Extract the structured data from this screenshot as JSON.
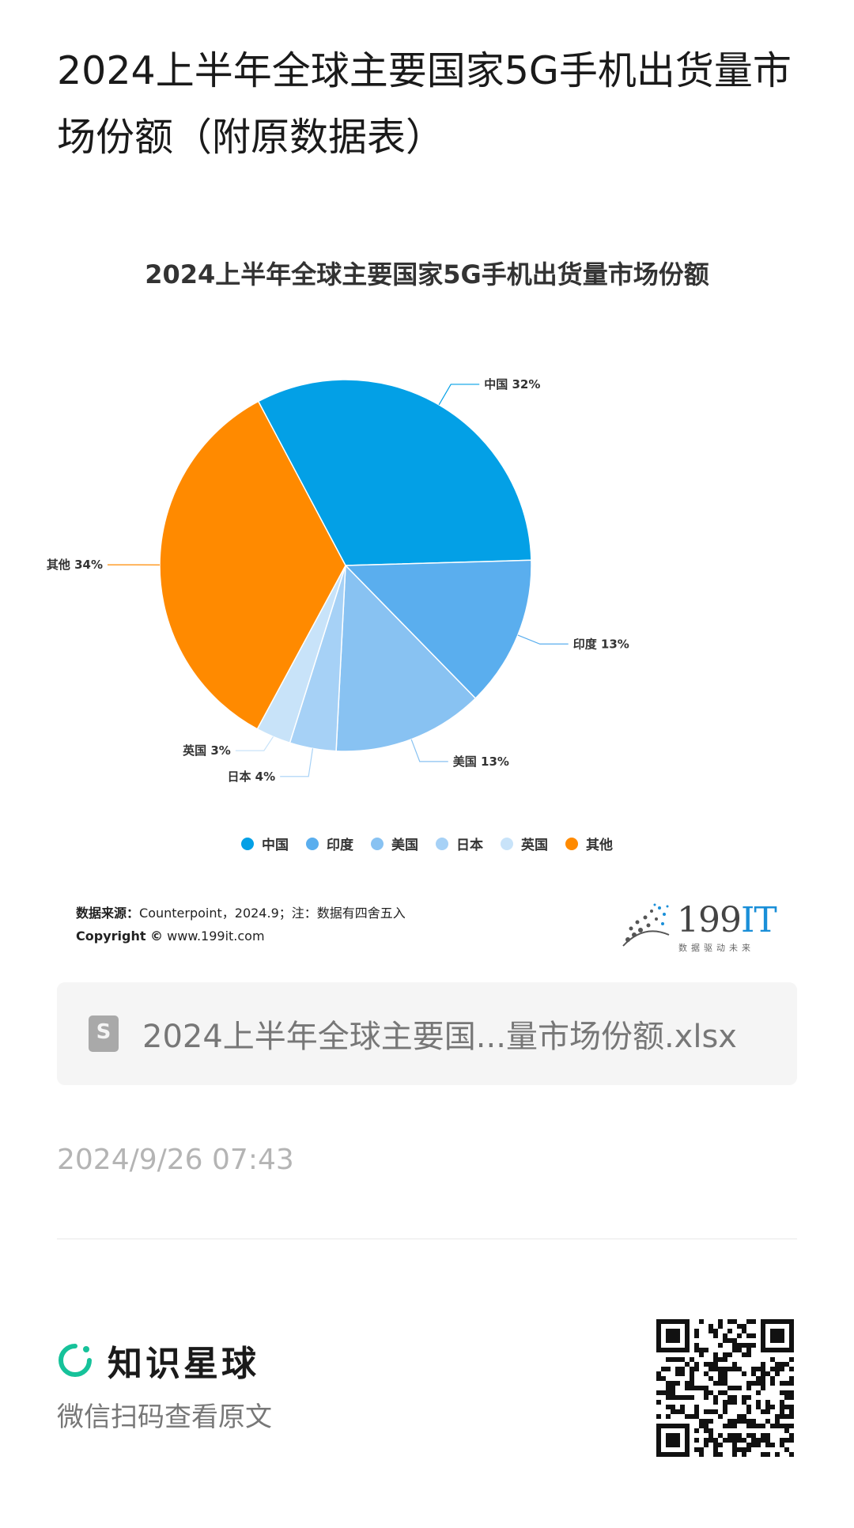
{
  "page": {
    "title": "2024上半年全球主要国家5G手机出货量市场份额（附原数据表）"
  },
  "chart_data": {
    "type": "pie",
    "title": "2024上半年全球主要国家5G手机出货量市场份额",
    "slices": [
      {
        "name": "中国",
        "value": 32,
        "label": "中国 32%",
        "color": "#03a0e6"
      },
      {
        "name": "印度",
        "value": 13,
        "label": "印度 13%",
        "color": "#5aaeee"
      },
      {
        "name": "美国",
        "value": 13,
        "label": "美国 13%",
        "color": "#88c2f2"
      },
      {
        "name": "日本",
        "value": 4,
        "label": "日本 4%",
        "color": "#a6d1f6"
      },
      {
        "name": "英国",
        "value": 3,
        "label": "英国 3%",
        "color": "#c8e3f9"
      },
      {
        "name": "其他",
        "value": 34,
        "label": "其他 34%",
        "color": "#ff8a00"
      }
    ],
    "legend_position": "bottom"
  },
  "source": {
    "label": "数据来源：",
    "text": "Counterpoint，2024.9；注：数据有四舍五入",
    "copyright_label": "Copyright ©",
    "copyright_url": "www.199it.com"
  },
  "logo": {
    "name_num": "199",
    "name_it": "IT",
    "tagline": "数据驱动未来"
  },
  "attachment": {
    "file_name": "2024上半年全球主要国...量市场份额.xlsx"
  },
  "timestamp": "2024/9/26 07:43",
  "footer": {
    "brand": "知识星球",
    "scan_hint": "微信扫码查看原文"
  }
}
